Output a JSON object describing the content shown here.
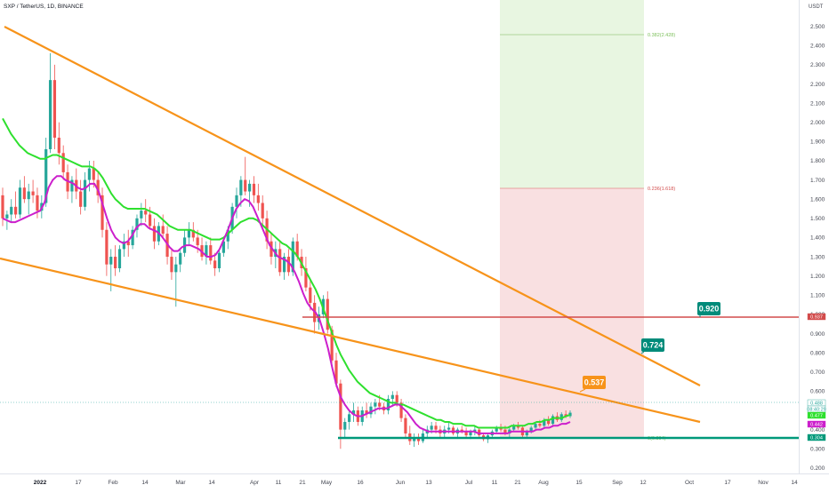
{
  "chart_data": {
    "type": "candlestick",
    "title": "SXP / TetherUS, 1D, BINANCE",
    "currency": "USDT",
    "colors": {
      "up": "#26a69a",
      "down": "#ef5350",
      "ma_fast": "#cc1fcc",
      "ma_slow": "#2ee02e",
      "trendline": "#f7931a",
      "resistance": "#d24b4b",
      "support": "#00997a",
      "target_zone": "#e8f6e1",
      "stop_zone": "#f9e0e1",
      "target_label": "#008b7a",
      "current_label": "#f7931a"
    },
    "y_axis": {
      "ticks": [
        "2.500",
        "2.400",
        "2.300",
        "2.200",
        "2.100",
        "2.000",
        "1.900",
        "1.800",
        "1.700",
        "1.600",
        "1.500",
        "1.400",
        "1.300",
        "1.200",
        "1.100",
        "1.000",
        "0.900",
        "0.800",
        "0.700",
        "0.600",
        "0.500",
        "0.400",
        "0.300",
        "0.200"
      ]
    },
    "x_axis": {
      "ticks": [
        "2022",
        "17",
        "Feb",
        "14",
        "Mar",
        "14",
        "Apr",
        "11",
        "21",
        "May",
        "16",
        "Jun",
        "13",
        "Jul",
        "11",
        "21",
        "Aug",
        "15",
        "Sep",
        "12",
        "Oct",
        "17",
        "Nov",
        "14"
      ]
    },
    "price_tags": [
      {
        "text": "0.488",
        "color": "#ffffff",
        "bg": "#ffffff",
        "fg": "#26a69a"
      },
      {
        "text": "08:40:29",
        "color": "#26a69a",
        "bg": "#ffffff",
        "fg": "#26a69a"
      },
      {
        "text": "0.477",
        "bg": "#2ee02e",
        "fg": "#ffffff"
      },
      {
        "text": "0.442",
        "bg": "#cc1fcc",
        "fg": "#ffffff"
      },
      {
        "text": "0.304",
        "bg": "#00997a",
        "fg": "#ffffff"
      },
      {
        "text": "0.937",
        "bg": "#d24b4b",
        "fg": "#ffffff"
      }
    ],
    "callouts": [
      {
        "text": "0.920",
        "bg": "#008b7a"
      },
      {
        "text": "0.724",
        "bg": "#008b7a"
      },
      {
        "text": "0.537",
        "bg": "#f7931a"
      }
    ],
    "zone_labels": [
      {
        "text": "0.382(2.428)",
        "color": "#7cbf5a"
      },
      {
        "text": "0.236(1.618)",
        "color": "#d24b4b"
      },
      {
        "text": "0(0.304)",
        "color": "#7cbf5a"
      }
    ],
    "candles": [
      {
        "o": 1.62,
        "h": 1.66,
        "l": 1.46,
        "c": 1.5
      },
      {
        "o": 1.5,
        "h": 1.54,
        "l": 1.44,
        "c": 1.52
      },
      {
        "o": 1.52,
        "h": 1.6,
        "l": 1.48,
        "c": 1.56
      },
      {
        "o": 1.56,
        "h": 1.64,
        "l": 1.5,
        "c": 1.52
      },
      {
        "o": 1.52,
        "h": 1.7,
        "l": 1.5,
        "c": 1.66
      },
      {
        "o": 1.66,
        "h": 1.72,
        "l": 1.58,
        "c": 1.6
      },
      {
        "o": 1.6,
        "h": 1.68,
        "l": 1.52,
        "c": 1.64
      },
      {
        "o": 1.64,
        "h": 1.7,
        "l": 1.58,
        "c": 1.62
      },
      {
        "o": 1.62,
        "h": 1.66,
        "l": 1.5,
        "c": 1.54
      },
      {
        "o": 1.54,
        "h": 1.62,
        "l": 1.5,
        "c": 1.58
      },
      {
        "o": 1.58,
        "h": 1.92,
        "l": 1.56,
        "c": 1.86
      },
      {
        "o": 1.86,
        "h": 2.36,
        "l": 1.84,
        "c": 2.22
      },
      {
        "o": 2.22,
        "h": 2.3,
        "l": 1.86,
        "c": 1.92
      },
      {
        "o": 1.92,
        "h": 2.0,
        "l": 1.78,
        "c": 1.84
      },
      {
        "o": 1.84,
        "h": 1.88,
        "l": 1.7,
        "c": 1.74
      },
      {
        "o": 1.74,
        "h": 1.78,
        "l": 1.6,
        "c": 1.64
      },
      {
        "o": 1.64,
        "h": 1.72,
        "l": 1.58,
        "c": 1.7
      },
      {
        "o": 1.7,
        "h": 1.76,
        "l": 1.6,
        "c": 1.64
      },
      {
        "o": 1.64,
        "h": 1.7,
        "l": 1.52,
        "c": 1.56
      },
      {
        "o": 1.56,
        "h": 1.74,
        "l": 1.54,
        "c": 1.7
      },
      {
        "o": 1.7,
        "h": 1.8,
        "l": 1.64,
        "c": 1.76
      },
      {
        "o": 1.76,
        "h": 1.8,
        "l": 1.66,
        "c": 1.7
      },
      {
        "o": 1.7,
        "h": 1.74,
        "l": 1.58,
        "c": 1.62
      },
      {
        "o": 1.62,
        "h": 1.66,
        "l": 1.4,
        "c": 1.44
      },
      {
        "o": 1.44,
        "h": 1.48,
        "l": 1.2,
        "c": 1.26
      },
      {
        "o": 1.26,
        "h": 1.34,
        "l": 1.12,
        "c": 1.3
      },
      {
        "o": 1.3,
        "h": 1.36,
        "l": 1.2,
        "c": 1.24
      },
      {
        "o": 1.24,
        "h": 1.36,
        "l": 1.22,
        "c": 1.34
      },
      {
        "o": 1.34,
        "h": 1.42,
        "l": 1.3,
        "c": 1.38
      },
      {
        "o": 1.38,
        "h": 1.44,
        "l": 1.3,
        "c": 1.36
      },
      {
        "o": 1.36,
        "h": 1.46,
        "l": 1.34,
        "c": 1.44
      },
      {
        "o": 1.44,
        "h": 1.52,
        "l": 1.4,
        "c": 1.5
      },
      {
        "o": 1.5,
        "h": 1.58,
        "l": 1.46,
        "c": 1.54
      },
      {
        "o": 1.54,
        "h": 1.6,
        "l": 1.48,
        "c": 1.52
      },
      {
        "o": 1.52,
        "h": 1.56,
        "l": 1.44,
        "c": 1.46
      },
      {
        "o": 1.46,
        "h": 1.5,
        "l": 1.34,
        "c": 1.38
      },
      {
        "o": 1.38,
        "h": 1.48,
        "l": 1.36,
        "c": 1.46
      },
      {
        "o": 1.46,
        "h": 1.52,
        "l": 1.4,
        "c": 1.42
      },
      {
        "o": 1.42,
        "h": 1.46,
        "l": 1.26,
        "c": 1.3
      },
      {
        "o": 1.3,
        "h": 1.34,
        "l": 1.18,
        "c": 1.22
      },
      {
        "o": 1.22,
        "h": 1.3,
        "l": 1.04,
        "c": 1.26
      },
      {
        "o": 1.26,
        "h": 1.34,
        "l": 1.22,
        "c": 1.32
      },
      {
        "o": 1.32,
        "h": 1.44,
        "l": 1.3,
        "c": 1.4
      },
      {
        "o": 1.4,
        "h": 1.48,
        "l": 1.36,
        "c": 1.44
      },
      {
        "o": 1.44,
        "h": 1.48,
        "l": 1.38,
        "c": 1.4
      },
      {
        "o": 1.4,
        "h": 1.44,
        "l": 1.32,
        "c": 1.36
      },
      {
        "o": 1.36,
        "h": 1.4,
        "l": 1.28,
        "c": 1.3
      },
      {
        "o": 1.3,
        "h": 1.38,
        "l": 1.26,
        "c": 1.36
      },
      {
        "o": 1.36,
        "h": 1.4,
        "l": 1.26,
        "c": 1.28
      },
      {
        "o": 1.28,
        "h": 1.32,
        "l": 1.2,
        "c": 1.24
      },
      {
        "o": 1.24,
        "h": 1.34,
        "l": 1.22,
        "c": 1.32
      },
      {
        "o": 1.32,
        "h": 1.4,
        "l": 1.3,
        "c": 1.38
      },
      {
        "o": 1.38,
        "h": 1.46,
        "l": 1.34,
        "c": 1.44
      },
      {
        "o": 1.44,
        "h": 1.58,
        "l": 1.42,
        "c": 1.56
      },
      {
        "o": 1.56,
        "h": 1.66,
        "l": 1.5,
        "c": 1.62
      },
      {
        "o": 1.62,
        "h": 1.72,
        "l": 1.56,
        "c": 1.7
      },
      {
        "o": 1.7,
        "h": 1.82,
        "l": 1.62,
        "c": 1.64
      },
      {
        "o": 1.64,
        "h": 1.7,
        "l": 1.56,
        "c": 1.68
      },
      {
        "o": 1.68,
        "h": 1.72,
        "l": 1.58,
        "c": 1.62
      },
      {
        "o": 1.62,
        "h": 1.68,
        "l": 1.54,
        "c": 1.58
      },
      {
        "o": 1.58,
        "h": 1.62,
        "l": 1.46,
        "c": 1.5
      },
      {
        "o": 1.5,
        "h": 1.54,
        "l": 1.34,
        "c": 1.38
      },
      {
        "o": 1.38,
        "h": 1.42,
        "l": 1.26,
        "c": 1.3
      },
      {
        "o": 1.3,
        "h": 1.38,
        "l": 1.24,
        "c": 1.34
      },
      {
        "o": 1.34,
        "h": 1.38,
        "l": 1.2,
        "c": 1.22
      },
      {
        "o": 1.22,
        "h": 1.32,
        "l": 1.18,
        "c": 1.3
      },
      {
        "o": 1.3,
        "h": 1.34,
        "l": 1.2,
        "c": 1.22
      },
      {
        "o": 1.22,
        "h": 1.4,
        "l": 1.2,
        "c": 1.38
      },
      {
        "o": 1.38,
        "h": 1.42,
        "l": 1.28,
        "c": 1.3
      },
      {
        "o": 1.3,
        "h": 1.34,
        "l": 1.2,
        "c": 1.24
      },
      {
        "o": 1.24,
        "h": 1.3,
        "l": 1.12,
        "c": 1.14
      },
      {
        "o": 1.14,
        "h": 1.18,
        "l": 1.02,
        "c": 1.06
      },
      {
        "o": 1.06,
        "h": 1.1,
        "l": 0.9,
        "c": 0.96
      },
      {
        "o": 0.96,
        "h": 1.04,
        "l": 0.92,
        "c": 1.0
      },
      {
        "o": 1.0,
        "h": 1.1,
        "l": 0.98,
        "c": 1.08
      },
      {
        "o": 1.08,
        "h": 1.12,
        "l": 0.9,
        "c": 0.92
      },
      {
        "o": 0.92,
        "h": 0.94,
        "l": 0.72,
        "c": 0.76
      },
      {
        "o": 0.76,
        "h": 0.8,
        "l": 0.62,
        "c": 0.64
      },
      {
        "o": 0.64,
        "h": 0.66,
        "l": 0.3,
        "c": 0.4
      },
      {
        "o": 0.4,
        "h": 0.46,
        "l": 0.36,
        "c": 0.44
      },
      {
        "o": 0.44,
        "h": 0.5,
        "l": 0.4,
        "c": 0.48
      },
      {
        "o": 0.48,
        "h": 0.54,
        "l": 0.44,
        "c": 0.5
      },
      {
        "o": 0.5,
        "h": 0.52,
        "l": 0.42,
        "c": 0.44
      },
      {
        "o": 0.44,
        "h": 0.52,
        "l": 0.42,
        "c": 0.5
      },
      {
        "o": 0.5,
        "h": 0.54,
        "l": 0.46,
        "c": 0.48
      },
      {
        "o": 0.48,
        "h": 0.54,
        "l": 0.46,
        "c": 0.52
      },
      {
        "o": 0.52,
        "h": 0.56,
        "l": 0.48,
        "c": 0.54
      },
      {
        "o": 0.54,
        "h": 0.58,
        "l": 0.5,
        "c": 0.52
      },
      {
        "o": 0.52,
        "h": 0.54,
        "l": 0.48,
        "c": 0.5
      },
      {
        "o": 0.5,
        "h": 0.58,
        "l": 0.48,
        "c": 0.56
      },
      {
        "o": 0.56,
        "h": 0.6,
        "l": 0.52,
        "c": 0.58
      },
      {
        "o": 0.58,
        "h": 0.6,
        "l": 0.52,
        "c": 0.54
      },
      {
        "o": 0.54,
        "h": 0.56,
        "l": 0.44,
        "c": 0.46
      },
      {
        "o": 0.46,
        "h": 0.48,
        "l": 0.36,
        "c": 0.38
      },
      {
        "o": 0.38,
        "h": 0.42,
        "l": 0.32,
        "c": 0.34
      },
      {
        "o": 0.34,
        "h": 0.38,
        "l": 0.31,
        "c": 0.36
      },
      {
        "o": 0.36,
        "h": 0.38,
        "l": 0.32,
        "c": 0.34
      },
      {
        "o": 0.34,
        "h": 0.4,
        "l": 0.33,
        "c": 0.38
      },
      {
        "o": 0.38,
        "h": 0.42,
        "l": 0.36,
        "c": 0.4
      },
      {
        "o": 0.4,
        "h": 0.44,
        "l": 0.38,
        "c": 0.42
      },
      {
        "o": 0.42,
        "h": 0.44,
        "l": 0.38,
        "c": 0.4
      },
      {
        "o": 0.4,
        "h": 0.42,
        "l": 0.36,
        "c": 0.38
      },
      {
        "o": 0.38,
        "h": 0.42,
        "l": 0.36,
        "c": 0.4
      },
      {
        "o": 0.4,
        "h": 0.44,
        "l": 0.38,
        "c": 0.41
      },
      {
        "o": 0.41,
        "h": 0.42,
        "l": 0.37,
        "c": 0.38
      },
      {
        "o": 0.38,
        "h": 0.41,
        "l": 0.36,
        "c": 0.4
      },
      {
        "o": 0.4,
        "h": 0.42,
        "l": 0.38,
        "c": 0.39
      },
      {
        "o": 0.39,
        "h": 0.41,
        "l": 0.36,
        "c": 0.37
      },
      {
        "o": 0.37,
        "h": 0.4,
        "l": 0.35,
        "c": 0.39
      },
      {
        "o": 0.39,
        "h": 0.42,
        "l": 0.37,
        "c": 0.4
      },
      {
        "o": 0.4,
        "h": 0.41,
        "l": 0.36,
        "c": 0.37
      },
      {
        "o": 0.37,
        "h": 0.38,
        "l": 0.34,
        "c": 0.35
      },
      {
        "o": 0.35,
        "h": 0.38,
        "l": 0.33,
        "c": 0.37
      },
      {
        "o": 0.37,
        "h": 0.4,
        "l": 0.36,
        "c": 0.39
      },
      {
        "o": 0.39,
        "h": 0.42,
        "l": 0.38,
        "c": 0.41
      },
      {
        "o": 0.41,
        "h": 0.43,
        "l": 0.39,
        "c": 0.4
      },
      {
        "o": 0.4,
        "h": 0.42,
        "l": 0.37,
        "c": 0.38
      },
      {
        "o": 0.38,
        "h": 0.41,
        "l": 0.36,
        "c": 0.4
      },
      {
        "o": 0.4,
        "h": 0.43,
        "l": 0.39,
        "c": 0.42
      },
      {
        "o": 0.42,
        "h": 0.44,
        "l": 0.4,
        "c": 0.41
      },
      {
        "o": 0.41,
        "h": 0.42,
        "l": 0.36,
        "c": 0.37
      },
      {
        "o": 0.37,
        "h": 0.4,
        "l": 0.36,
        "c": 0.39
      },
      {
        "o": 0.39,
        "h": 0.42,
        "l": 0.38,
        "c": 0.41
      },
      {
        "o": 0.41,
        "h": 0.44,
        "l": 0.4,
        "c": 0.43
      },
      {
        "o": 0.43,
        "h": 0.45,
        "l": 0.41,
        "c": 0.42
      },
      {
        "o": 0.42,
        "h": 0.46,
        "l": 0.41,
        "c": 0.45
      },
      {
        "o": 0.45,
        "h": 0.47,
        "l": 0.42,
        "c": 0.43
      },
      {
        "o": 0.43,
        "h": 0.48,
        "l": 0.42,
        "c": 0.47
      },
      {
        "o": 0.47,
        "h": 0.49,
        "l": 0.44,
        "c": 0.45
      },
      {
        "o": 0.45,
        "h": 0.49,
        "l": 0.44,
        "c": 0.48
      },
      {
        "o": 0.48,
        "h": 0.5,
        "l": 0.46,
        "c": 0.47
      },
      {
        "o": 0.47,
        "h": 0.5,
        "l": 0.46,
        "c": 0.488
      }
    ],
    "ma_fast": [
      1.5,
      1.49,
      1.48,
      1.48,
      1.49,
      1.5,
      1.51,
      1.52,
      1.53,
      1.54,
      1.58,
      1.66,
      1.7,
      1.72,
      1.72,
      1.7,
      1.69,
      1.68,
      1.66,
      1.65,
      1.66,
      1.68,
      1.68,
      1.64,
      1.57,
      1.5,
      1.44,
      1.4,
      1.38,
      1.37,
      1.38,
      1.41,
      1.45,
      1.47,
      1.47,
      1.45,
      1.44,
      1.43,
      1.41,
      1.38,
      1.35,
      1.33,
      1.33,
      1.35,
      1.36,
      1.36,
      1.35,
      1.34,
      1.32,
      1.3,
      1.3,
      1.31,
      1.34,
      1.39,
      1.44,
      1.5,
      1.55,
      1.58,
      1.6,
      1.59,
      1.56,
      1.51,
      1.46,
      1.41,
      1.36,
      1.33,
      1.3,
      1.29,
      1.28,
      1.26,
      1.22,
      1.17,
      1.11,
      1.06,
      1.03,
      1.01,
      0.97,
      0.9,
      0.82,
      0.72,
      0.63,
      0.57,
      0.53,
      0.5,
      0.48,
      0.47,
      0.47,
      0.48,
      0.49,
      0.5,
      0.51,
      0.51,
      0.51,
      0.52,
      0.53,
      0.53,
      0.51,
      0.49,
      0.46,
      0.43,
      0.41,
      0.4,
      0.39,
      0.39,
      0.39,
      0.39,
      0.39,
      0.39,
      0.39,
      0.39,
      0.39,
      0.39,
      0.39,
      0.39,
      0.38,
      0.38,
      0.38,
      0.38,
      0.38,
      0.38,
      0.38,
      0.38,
      0.39,
      0.39,
      0.39,
      0.39,
      0.39,
      0.39,
      0.4,
      0.4,
      0.41,
      0.41,
      0.42,
      0.42,
      0.43,
      0.43,
      0.44
    ],
    "ma_slow": [
      2.02,
      1.98,
      1.94,
      1.91,
      1.88,
      1.86,
      1.84,
      1.83,
      1.82,
      1.81,
      1.81,
      1.82,
      1.83,
      1.83,
      1.82,
      1.81,
      1.8,
      1.79,
      1.78,
      1.77,
      1.77,
      1.77,
      1.76,
      1.74,
      1.71,
      1.67,
      1.63,
      1.6,
      1.58,
      1.56,
      1.55,
      1.55,
      1.55,
      1.55,
      1.55,
      1.54,
      1.53,
      1.52,
      1.5,
      1.48,
      1.46,
      1.45,
      1.44,
      1.44,
      1.44,
      1.44,
      1.43,
      1.42,
      1.41,
      1.4,
      1.39,
      1.39,
      1.39,
      1.4,
      1.42,
      1.44,
      1.46,
      1.48,
      1.49,
      1.5,
      1.5,
      1.49,
      1.47,
      1.45,
      1.43,
      1.41,
      1.39,
      1.37,
      1.36,
      1.34,
      1.32,
      1.29,
      1.25,
      1.21,
      1.17,
      1.13,
      1.08,
      1.02,
      0.96,
      0.9,
      0.84,
      0.79,
      0.75,
      0.71,
      0.68,
      0.65,
      0.63,
      0.61,
      0.59,
      0.58,
      0.57,
      0.56,
      0.55,
      0.54,
      0.54,
      0.53,
      0.53,
      0.52,
      0.51,
      0.5,
      0.49,
      0.48,
      0.47,
      0.46,
      0.45,
      0.45,
      0.44,
      0.44,
      0.43,
      0.43,
      0.43,
      0.42,
      0.42,
      0.42,
      0.41,
      0.41,
      0.41,
      0.41,
      0.41,
      0.41,
      0.41,
      0.41,
      0.42,
      0.42,
      0.42,
      0.42,
      0.43,
      0.43,
      0.44,
      0.44,
      0.45,
      0.45,
      0.46,
      0.46,
      0.46,
      0.47,
      0.477
    ]
  }
}
